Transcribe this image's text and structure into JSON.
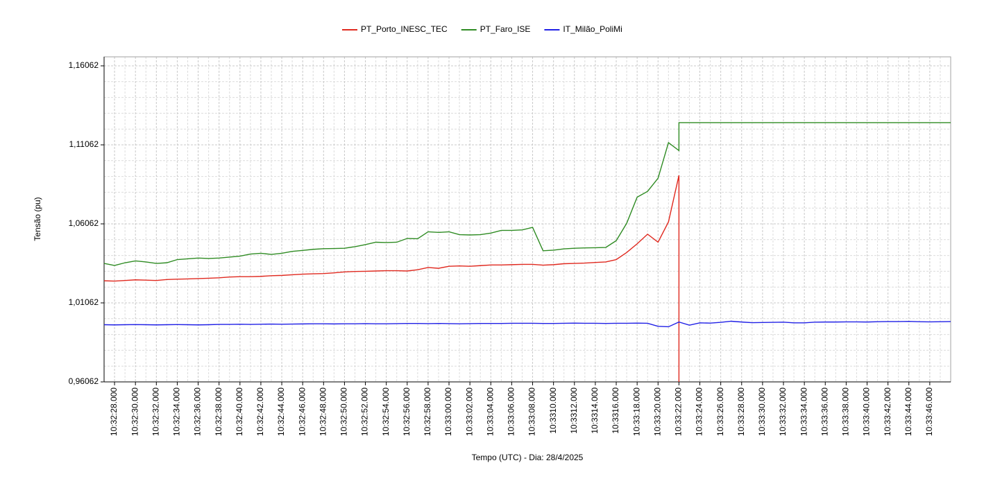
{
  "chart_data": {
    "type": "line",
    "y_label": "Tensão (pu)",
    "x_label": "Tempo (UTC) - Dia: 28/4/2025",
    "legend": "top",
    "grid": true,
    "xlim": [
      27,
      108
    ],
    "ylim": [
      0.96062,
      1.16632
    ],
    "yticks": [
      {
        "value": 0.96062,
        "label": "0,96062"
      },
      {
        "value": 1.01062,
        "label": "1,01062"
      },
      {
        "value": 1.06062,
        "label": "1,06062"
      },
      {
        "value": 1.11062,
        "label": "1,11062"
      },
      {
        "value": 1.16062,
        "label": "1,16062"
      }
    ],
    "y_minor_ticks": [
      0.97062,
      0.98062,
      0.99062,
      1.00062,
      1.02062,
      1.03062,
      1.04062,
      1.05062,
      1.07062,
      1.08062,
      1.09062,
      1.10062,
      1.12062,
      1.13062,
      1.14062,
      1.15062
    ],
    "xticks": [
      {
        "value": 28,
        "label": "10:32:28.000"
      },
      {
        "value": 30,
        "label": "10:32:30.000"
      },
      {
        "value": 32,
        "label": "10:32:32.000"
      },
      {
        "value": 34,
        "label": "10:32:34.000"
      },
      {
        "value": 36,
        "label": "10:32:36.000"
      },
      {
        "value": 38,
        "label": "10:32:38.000"
      },
      {
        "value": 40,
        "label": "10:32:40.000"
      },
      {
        "value": 42,
        "label": "10:32:42.000"
      },
      {
        "value": 44,
        "label": "10:32:44.000"
      },
      {
        "value": 46,
        "label": "10:32:46.000"
      },
      {
        "value": 48,
        "label": "10:32:48.000"
      },
      {
        "value": 50,
        "label": "10:32:50.000"
      },
      {
        "value": 52,
        "label": "10:32:52.000"
      },
      {
        "value": 54,
        "label": "10:32:54.000"
      },
      {
        "value": 56,
        "label": "10:32:56.000"
      },
      {
        "value": 58,
        "label": "10:32:58.000"
      },
      {
        "value": 60,
        "label": "10:33:00.000"
      },
      {
        "value": 62,
        "label": "10:33:02.000"
      },
      {
        "value": 64,
        "label": "10:33:04.000"
      },
      {
        "value": 66,
        "label": "10:33:06.000"
      },
      {
        "value": 68,
        "label": "10:33:08.000"
      },
      {
        "value": 70,
        "label": "10:3310.000"
      },
      {
        "value": 72,
        "label": "10:3312.000"
      },
      {
        "value": 74,
        "label": "10:3314.000"
      },
      {
        "value": 76,
        "label": "10:3316.000"
      },
      {
        "value": 78,
        "label": "10:33:18.000"
      },
      {
        "value": 80,
        "label": "10:33:20.000"
      },
      {
        "value": 82,
        "label": "10:33:22.000"
      },
      {
        "value": 84,
        "label": "10:33:24.000"
      },
      {
        "value": 86,
        "label": "10:33:26.000"
      },
      {
        "value": 88,
        "label": "10:33:28.000"
      },
      {
        "value": 90,
        "label": "10:33:30.000"
      },
      {
        "value": 92,
        "label": "10:33:32.000"
      },
      {
        "value": 94,
        "label": "10:33:34.000"
      },
      {
        "value": 96,
        "label": "10:33:36.000"
      },
      {
        "value": 98,
        "label": "10:33:38.000"
      },
      {
        "value": 100,
        "label": "10:33:40.000"
      },
      {
        "value": 102,
        "label": "10:33:42.000"
      },
      {
        "value": 104,
        "label": "10:33:44.000"
      },
      {
        "value": 106,
        "label": "10:33:46.000"
      }
    ],
    "x_minor_ticks": [
      29,
      31,
      33,
      35,
      37,
      39,
      41,
      43,
      45,
      47,
      49,
      51,
      53,
      55,
      57,
      59,
      61,
      63,
      65,
      67,
      69,
      71,
      73,
      75,
      77,
      79,
      81,
      83,
      85,
      87,
      89,
      91,
      93,
      95,
      97,
      99,
      101,
      103,
      105,
      107
    ],
    "x": [
      27,
      28,
      29,
      30,
      31,
      32,
      33,
      34,
      35,
      36,
      37,
      38,
      39,
      40,
      41,
      42,
      43,
      44,
      45,
      46,
      47,
      48,
      49,
      50,
      51,
      52,
      53,
      54,
      55,
      56,
      57,
      58,
      59,
      60,
      61,
      62,
      63,
      64,
      65,
      66,
      67,
      68,
      69,
      70,
      71,
      72,
      73,
      74,
      75,
      76,
      77,
      78,
      79,
      80,
      81,
      82,
      82,
      83,
      84,
      85,
      86,
      87,
      88,
      89,
      90,
      91,
      92,
      93,
      94,
      95,
      96,
      97,
      98,
      99,
      100,
      101,
      102,
      103,
      104,
      105,
      106,
      107,
      108
    ],
    "series": [
      {
        "name": "PT_Porto_INESC_TEC",
        "color": "#e0281e",
        "values": [
          1.0246,
          1.0244,
          1.0248,
          1.0252,
          1.025,
          1.0248,
          1.0254,
          1.0256,
          1.0258,
          1.026,
          1.0262,
          1.0265,
          1.027,
          1.0272,
          1.0272,
          1.0274,
          1.0278,
          1.028,
          1.0284,
          1.0288,
          1.029,
          1.0292,
          1.0296,
          1.0302,
          1.0305,
          1.0306,
          1.0308,
          1.031,
          1.031,
          1.0308,
          1.0316,
          1.033,
          1.0325,
          1.0338,
          1.034,
          1.0338,
          1.0342,
          1.0346,
          1.0346,
          1.0348,
          1.035,
          1.035,
          1.0345,
          1.0348,
          1.0354,
          1.0356,
          1.0358,
          1.0362,
          1.0365,
          1.038,
          1.0425,
          1.048,
          1.0541,
          1.049,
          1.0619,
          1.0913,
          0.96062,
          null,
          null,
          null,
          null,
          null,
          null,
          null,
          null,
          null,
          null,
          null,
          null,
          null,
          null,
          null,
          null,
          null,
          null,
          null,
          null,
          null,
          null,
          null,
          null,
          null,
          null
        ]
      },
      {
        "name": "PT_Faro_ISE",
        "color": "#2e8b22",
        "values": [
          1.0356,
          1.0343,
          1.036,
          1.0372,
          1.0365,
          1.0356,
          1.036,
          1.038,
          1.0385,
          1.039,
          1.0387,
          1.039,
          1.0396,
          1.0402,
          1.0415,
          1.042,
          1.0413,
          1.042,
          1.0432,
          1.0438,
          1.0445,
          1.0449,
          1.045,
          1.0452,
          1.0462,
          1.0475,
          1.049,
          1.0488,
          1.049,
          1.0514,
          1.0512,
          1.0556,
          1.0552,
          1.0556,
          1.0538,
          1.0536,
          1.0538,
          1.0548,
          1.0565,
          1.0565,
          1.0568,
          1.0584,
          1.0436,
          1.044,
          1.0448,
          1.0452,
          1.0454,
          1.0455,
          1.0457,
          1.05,
          1.061,
          1.0775,
          1.0812,
          1.0895,
          1.112,
          1.107,
          1.1247,
          1.1247,
          1.1247,
          1.1247,
          1.1247,
          1.1247,
          1.1247,
          1.1247,
          1.1247,
          1.1247,
          1.1247,
          1.1247,
          1.1247,
          1.1247,
          1.1247,
          1.1247,
          1.1247,
          1.1247,
          1.1247,
          1.1247,
          1.1247,
          1.1247,
          1.1247,
          1.1247,
          1.1247,
          1.1247,
          1.1247
        ]
      },
      {
        "name": "IT_Milão_PoliMi",
        "color": "#1f1fe6",
        "values": [
          0.9968,
          0.9967,
          0.9968,
          0.9969,
          0.9968,
          0.9967,
          0.9968,
          0.9969,
          0.9968,
          0.9967,
          0.9968,
          0.997,
          0.997,
          0.9971,
          0.997,
          0.9971,
          0.9972,
          0.9971,
          0.9972,
          0.9973,
          0.9974,
          0.9974,
          0.9973,
          0.9974,
          0.9974,
          0.9975,
          0.9974,
          0.9974,
          0.9975,
          0.9976,
          0.9976,
          0.9975,
          0.9976,
          0.9975,
          0.9974,
          0.9975,
          0.9976,
          0.9976,
          0.9976,
          0.9977,
          0.9977,
          0.9977,
          0.9976,
          0.9976,
          0.9977,
          0.9978,
          0.9977,
          0.9977,
          0.9976,
          0.9977,
          0.9977,
          0.9978,
          0.9977,
          0.9958,
          0.9955,
          0.9985,
          0.9985,
          0.9965,
          0.998,
          0.9978,
          0.9983,
          0.999,
          0.9985,
          0.9981,
          0.9982,
          0.9983,
          0.9984,
          0.998,
          0.998,
          0.9984,
          0.9985,
          0.9985,
          0.9986,
          0.9986,
          0.9985,
          0.9987,
          0.9988,
          0.9988,
          0.9989,
          0.9987,
          0.9986,
          0.9987,
          0.9988
        ]
      }
    ]
  }
}
